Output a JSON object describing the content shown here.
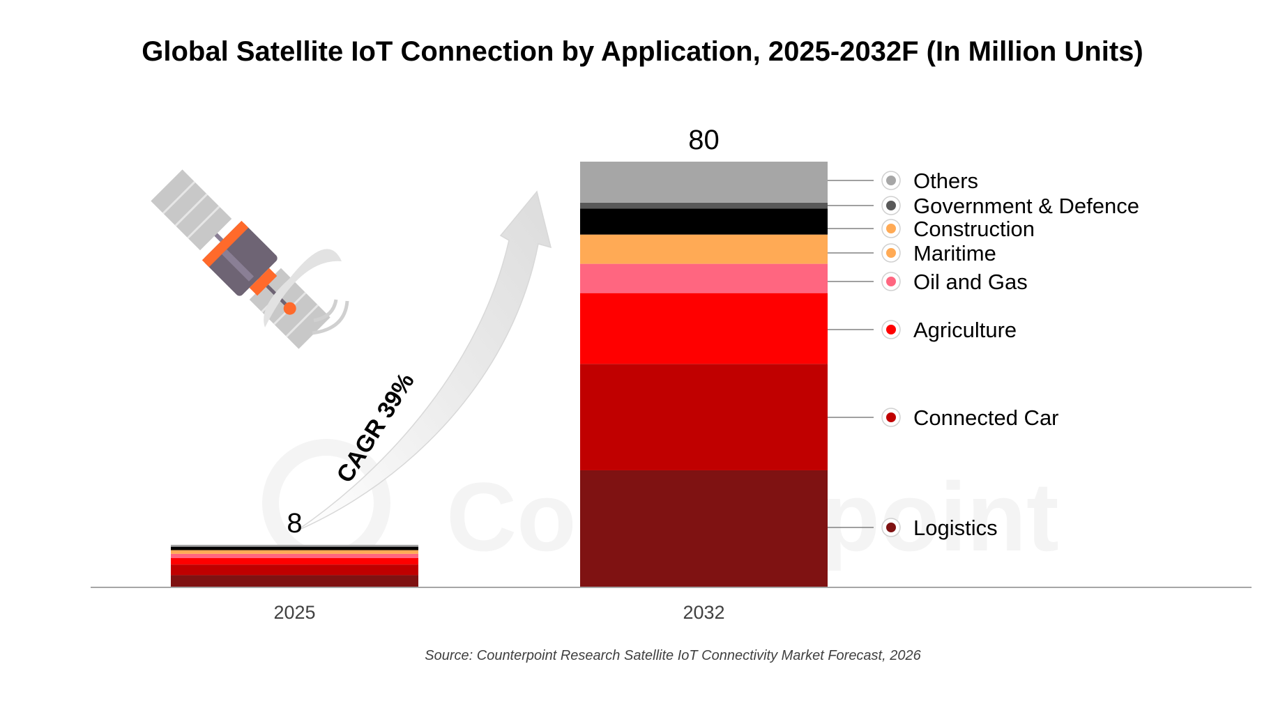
{
  "chart_data": {
    "type": "bar",
    "stacked": true,
    "title": "Global Satellite IoT Connection by Application, 2025-2032F (In Million Units)",
    "categories": [
      "2025",
      "2032"
    ],
    "totals": [
      8,
      80
    ],
    "series": [
      {
        "name": "Logistics",
        "values": [
          2.3,
          22
        ],
        "color": "#7f1212"
      },
      {
        "name": "Connected Car",
        "values": [
          2.0,
          20
        ],
        "color": "#c00000"
      },
      {
        "name": "Agriculture",
        "values": [
          1.2,
          13.3
        ],
        "color": "#ff0000"
      },
      {
        "name": "Oil and Gas",
        "values": [
          0.8,
          5.5
        ],
        "color": "#ff6680"
      },
      {
        "name": "Maritime",
        "values": [
          0.7,
          5.5
        ],
        "color": "#ffaa55"
      },
      {
        "name": "Construction",
        "values": [
          0.6,
          4.9
        ],
        "color": "#000000"
      },
      {
        "name": "Government & Defence",
        "values": [
          0.1,
          1.1
        ],
        "color": "#595959"
      },
      {
        "name": "Others",
        "values": [
          0.3,
          7.7
        ],
        "color": "#a6a6a6"
      }
    ],
    "annotation": "CAGR 39%",
    "source": "Source: Counterpoint Research Satellite IoT Connectivity Market Forecast, 2026",
    "watermark": "Counterpoint",
    "grid": false,
    "legend": "right"
  },
  "colors": {
    "axis": "#a6a6a6",
    "leader": "#808080",
    "watermark": "#f2f2f2",
    "arrow": "#e6e6e6"
  }
}
